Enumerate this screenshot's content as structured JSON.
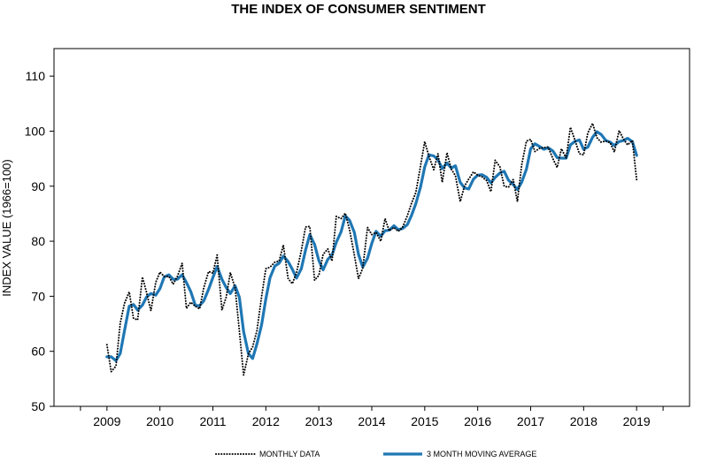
{
  "chart_data": {
    "type": "line",
    "title": "THE INDEX OF CONSUMER SENTIMENT",
    "ylabel": "INDEX VALUE (1966=100)",
    "xlabel": "",
    "xlim": [
      2008.0,
      2020.0
    ],
    "ylim": [
      50,
      115
    ],
    "x_ticks": [
      2009,
      2010,
      2011,
      2012,
      2013,
      2014,
      2015,
      2016,
      2017,
      2018,
      2019
    ],
    "y_ticks": [
      50,
      60,
      70,
      80,
      90,
      100,
      110
    ],
    "grid": false,
    "legend_position": "bottom",
    "series": [
      {
        "name": "MONTHLY DATA",
        "style": "dotted",
        "color": "#000000",
        "points": [
          [
            2009.0,
            61.2
          ],
          [
            2009.08,
            56.3
          ],
          [
            2009.17,
            57.3
          ],
          [
            2009.25,
            65.1
          ],
          [
            2009.33,
            68.7
          ],
          [
            2009.42,
            70.8
          ],
          [
            2009.5,
            66.0
          ],
          [
            2009.58,
            65.7
          ],
          [
            2009.67,
            73.5
          ],
          [
            2009.75,
            70.6
          ],
          [
            2009.83,
            67.4
          ],
          [
            2009.92,
            72.5
          ],
          [
            2010.0,
            74.4
          ],
          [
            2010.08,
            73.6
          ],
          [
            2010.17,
            73.6
          ],
          [
            2010.25,
            72.2
          ],
          [
            2010.33,
            73.6
          ],
          [
            2010.42,
            76.0
          ],
          [
            2010.5,
            67.8
          ],
          [
            2010.58,
            68.9
          ],
          [
            2010.67,
            68.2
          ],
          [
            2010.75,
            67.7
          ],
          [
            2010.83,
            71.6
          ],
          [
            2010.92,
            74.5
          ],
          [
            2011.0,
            74.2
          ],
          [
            2011.08,
            77.5
          ],
          [
            2011.17,
            67.5
          ],
          [
            2011.25,
            69.8
          ],
          [
            2011.33,
            74.3
          ],
          [
            2011.42,
            71.5
          ],
          [
            2011.5,
            63.7
          ],
          [
            2011.58,
            55.7
          ],
          [
            2011.67,
            59.5
          ],
          [
            2011.75,
            60.8
          ],
          [
            2011.83,
            63.7
          ],
          [
            2011.92,
            69.9
          ],
          [
            2012.0,
            75.0
          ],
          [
            2012.08,
            75.3
          ],
          [
            2012.17,
            76.2
          ],
          [
            2012.25,
            76.4
          ],
          [
            2012.33,
            79.3
          ],
          [
            2012.42,
            73.2
          ],
          [
            2012.5,
            72.3
          ],
          [
            2012.58,
            74.3
          ],
          [
            2012.67,
            78.3
          ],
          [
            2012.75,
            82.6
          ],
          [
            2012.83,
            82.7
          ],
          [
            2012.92,
            72.9
          ],
          [
            2013.0,
            73.8
          ],
          [
            2013.08,
            77.6
          ],
          [
            2013.17,
            78.6
          ],
          [
            2013.25,
            76.4
          ],
          [
            2013.33,
            84.5
          ],
          [
            2013.42,
            84.1
          ],
          [
            2013.5,
            85.1
          ],
          [
            2013.58,
            82.1
          ],
          [
            2013.67,
            77.5
          ],
          [
            2013.75,
            73.2
          ],
          [
            2013.83,
            75.1
          ],
          [
            2013.92,
            82.5
          ],
          [
            2014.0,
            81.2
          ],
          [
            2014.08,
            81.6
          ],
          [
            2014.17,
            80.0
          ],
          [
            2014.25,
            84.1
          ],
          [
            2014.33,
            81.9
          ],
          [
            2014.42,
            82.5
          ],
          [
            2014.5,
            81.8
          ],
          [
            2014.58,
            82.5
          ],
          [
            2014.67,
            84.6
          ],
          [
            2014.75,
            86.9
          ],
          [
            2014.83,
            88.8
          ],
          [
            2014.92,
            93.6
          ],
          [
            2015.0,
            98.1
          ],
          [
            2015.08,
            95.4
          ],
          [
            2015.17,
            93.0
          ],
          [
            2015.25,
            95.9
          ],
          [
            2015.33,
            90.7
          ],
          [
            2015.42,
            96.1
          ],
          [
            2015.5,
            93.1
          ],
          [
            2015.58,
            91.9
          ],
          [
            2015.67,
            87.2
          ],
          [
            2015.75,
            90.0
          ],
          [
            2015.83,
            91.3
          ],
          [
            2015.92,
            92.6
          ],
          [
            2016.0,
            92.0
          ],
          [
            2016.08,
            91.7
          ],
          [
            2016.17,
            91.0
          ],
          [
            2016.25,
            89.0
          ],
          [
            2016.33,
            94.7
          ],
          [
            2016.42,
            93.5
          ],
          [
            2016.5,
            90.0
          ],
          [
            2016.58,
            89.8
          ],
          [
            2016.67,
            91.2
          ],
          [
            2016.75,
            87.2
          ],
          [
            2016.83,
            93.8
          ],
          [
            2016.92,
            98.2
          ],
          [
            2017.0,
            98.5
          ],
          [
            2017.08,
            96.3
          ],
          [
            2017.17,
            96.9
          ],
          [
            2017.25,
            97.0
          ],
          [
            2017.33,
            97.1
          ],
          [
            2017.42,
            95.0
          ],
          [
            2017.5,
            93.4
          ],
          [
            2017.58,
            96.8
          ],
          [
            2017.67,
            95.1
          ],
          [
            2017.75,
            100.7
          ],
          [
            2017.83,
            98.5
          ],
          [
            2017.92,
            95.9
          ],
          [
            2018.0,
            95.7
          ],
          [
            2018.08,
            99.7
          ],
          [
            2018.17,
            101.4
          ],
          [
            2018.25,
            98.8
          ],
          [
            2018.33,
            98.0
          ],
          [
            2018.42,
            98.2
          ],
          [
            2018.5,
            97.9
          ],
          [
            2018.58,
            96.2
          ],
          [
            2018.67,
            100.1
          ],
          [
            2018.75,
            98.6
          ],
          [
            2018.83,
            97.5
          ],
          [
            2018.92,
            98.3
          ],
          [
            2019.0,
            91.2
          ]
        ]
      },
      {
        "name": "3 MONTH MOVING AVERAGE",
        "style": "solid",
        "color": "#1f77b4",
        "points": [
          [
            2009.0,
            59.0
          ],
          [
            2009.08,
            59.0
          ],
          [
            2009.17,
            58.3
          ],
          [
            2009.25,
            59.6
          ],
          [
            2009.33,
            63.7
          ],
          [
            2009.42,
            68.2
          ],
          [
            2009.5,
            68.5
          ],
          [
            2009.58,
            67.5
          ],
          [
            2009.67,
            68.4
          ],
          [
            2009.75,
            69.9
          ],
          [
            2009.83,
            70.5
          ],
          [
            2009.92,
            70.2
          ],
          [
            2010.0,
            71.4
          ],
          [
            2010.08,
            73.5
          ],
          [
            2010.17,
            73.9
          ],
          [
            2010.25,
            73.1
          ],
          [
            2010.33,
            73.1
          ],
          [
            2010.42,
            73.9
          ],
          [
            2010.5,
            72.5
          ],
          [
            2010.58,
            70.9
          ],
          [
            2010.67,
            68.3
          ],
          [
            2010.75,
            68.3
          ],
          [
            2010.83,
            69.2
          ],
          [
            2010.92,
            71.3
          ],
          [
            2011.0,
            73.4
          ],
          [
            2011.08,
            75.4
          ],
          [
            2011.17,
            73.1
          ],
          [
            2011.25,
            71.6
          ],
          [
            2011.33,
            70.5
          ],
          [
            2011.42,
            71.9
          ],
          [
            2011.5,
            69.8
          ],
          [
            2011.58,
            63.6
          ],
          [
            2011.67,
            59.6
          ],
          [
            2011.75,
            58.7
          ],
          [
            2011.83,
            61.3
          ],
          [
            2011.92,
            64.8
          ],
          [
            2012.0,
            69.5
          ],
          [
            2012.08,
            73.4
          ],
          [
            2012.17,
            75.5
          ],
          [
            2012.25,
            76.0
          ],
          [
            2012.33,
            77.3
          ],
          [
            2012.42,
            76.3
          ],
          [
            2012.5,
            74.9
          ],
          [
            2012.58,
            73.3
          ],
          [
            2012.67,
            75.0
          ],
          [
            2012.75,
            78.4
          ],
          [
            2012.83,
            81.2
          ],
          [
            2012.92,
            79.4
          ],
          [
            2013.0,
            76.5
          ],
          [
            2013.08,
            74.8
          ],
          [
            2013.17,
            76.7
          ],
          [
            2013.25,
            77.5
          ],
          [
            2013.33,
            79.8
          ],
          [
            2013.42,
            81.7
          ],
          [
            2013.5,
            84.6
          ],
          [
            2013.58,
            83.8
          ],
          [
            2013.67,
            81.6
          ],
          [
            2013.75,
            77.6
          ],
          [
            2013.83,
            75.3
          ],
          [
            2013.92,
            76.9
          ],
          [
            2014.0,
            79.6
          ],
          [
            2014.08,
            81.8
          ],
          [
            2014.17,
            80.9
          ],
          [
            2014.25,
            81.9
          ],
          [
            2014.33,
            82.0
          ],
          [
            2014.42,
            82.8
          ],
          [
            2014.5,
            82.1
          ],
          [
            2014.58,
            82.3
          ],
          [
            2014.67,
            83.0
          ],
          [
            2014.75,
            84.7
          ],
          [
            2014.83,
            86.8
          ],
          [
            2014.92,
            89.8
          ],
          [
            2015.0,
            93.5
          ],
          [
            2015.08,
            95.7
          ],
          [
            2015.17,
            95.5
          ],
          [
            2015.25,
            94.8
          ],
          [
            2015.33,
            93.2
          ],
          [
            2015.42,
            94.2
          ],
          [
            2015.5,
            93.3
          ],
          [
            2015.58,
            93.7
          ],
          [
            2015.67,
            90.7
          ],
          [
            2015.75,
            89.7
          ],
          [
            2015.83,
            89.5
          ],
          [
            2015.92,
            91.3
          ],
          [
            2016.0,
            92.0
          ],
          [
            2016.08,
            92.1
          ],
          [
            2016.17,
            91.6
          ],
          [
            2016.25,
            90.6
          ],
          [
            2016.33,
            91.6
          ],
          [
            2016.42,
            92.4
          ],
          [
            2016.5,
            92.7
          ],
          [
            2016.58,
            91.1
          ],
          [
            2016.67,
            90.3
          ],
          [
            2016.75,
            89.4
          ],
          [
            2016.83,
            90.7
          ],
          [
            2016.92,
            93.1
          ],
          [
            2017.0,
            96.8
          ],
          [
            2017.08,
            97.7
          ],
          [
            2017.17,
            97.2
          ],
          [
            2017.25,
            96.7
          ],
          [
            2017.33,
            97.0
          ],
          [
            2017.42,
            96.4
          ],
          [
            2017.5,
            95.2
          ],
          [
            2017.58,
            95.1
          ],
          [
            2017.67,
            95.1
          ],
          [
            2017.75,
            97.5
          ],
          [
            2017.83,
            98.1
          ],
          [
            2017.92,
            98.4
          ],
          [
            2018.0,
            96.7
          ],
          [
            2018.08,
            97.1
          ],
          [
            2018.17,
            98.9
          ],
          [
            2018.25,
            99.9
          ],
          [
            2018.33,
            99.4
          ],
          [
            2018.42,
            98.3
          ],
          [
            2018.5,
            98.0
          ],
          [
            2018.58,
            97.4
          ],
          [
            2018.67,
            98.1
          ],
          [
            2018.75,
            98.3
          ],
          [
            2018.83,
            98.7
          ],
          [
            2018.92,
            98.1
          ],
          [
            2019.0,
            95.6
          ]
        ]
      }
    ]
  }
}
